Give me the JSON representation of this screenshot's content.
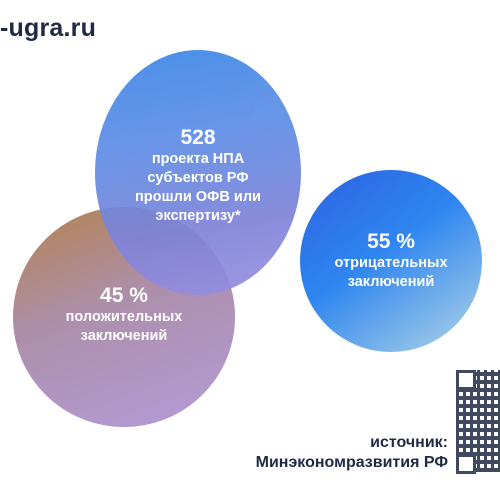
{
  "brand": {
    "text": "-ugra.ru"
  },
  "bubbles": {
    "center": {
      "value": "528",
      "lines": [
        "проекта НПА",
        "субъектов РФ",
        "прошли ОФВ или",
        "экспертизу*"
      ]
    },
    "left": {
      "value": "45 %",
      "lines": [
        "положительных",
        "заключений"
      ]
    },
    "right": {
      "value": "55 %",
      "lines": [
        "отрицательных",
        "заключений"
      ]
    }
  },
  "source": {
    "label": "источник:",
    "name": "Минэкономразвития РФ"
  },
  "colors": {
    "text_dark": "#1f2a44",
    "blue": "#2f86f0",
    "purple": "#9a8fe0",
    "bronze": "#b07b46"
  },
  "icons": {
    "qr": "qr-code-icon"
  }
}
